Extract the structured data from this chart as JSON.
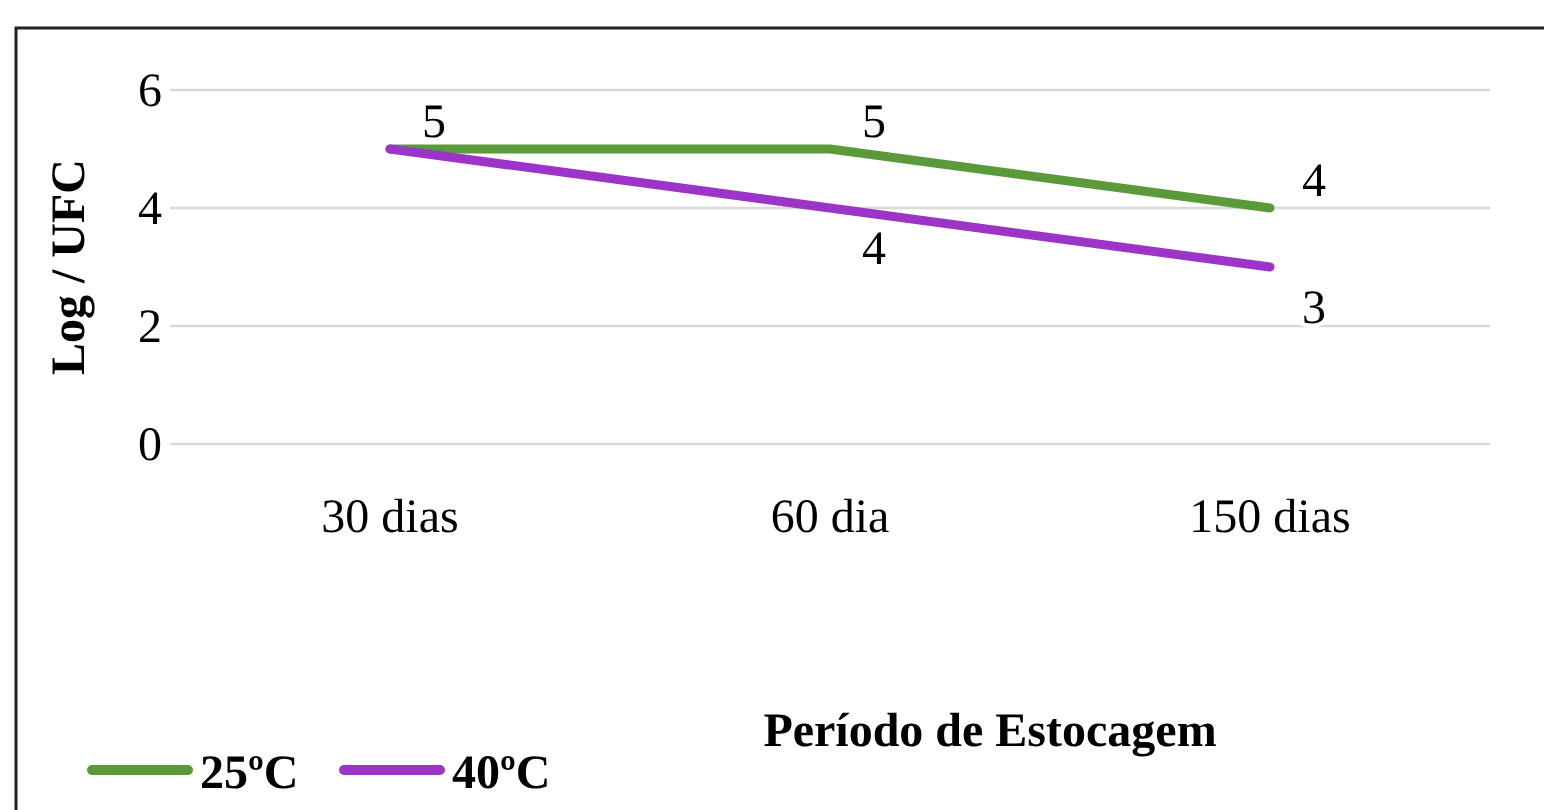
{
  "chart_data": {
    "type": "line",
    "xlabel": "Período de Estocagem",
    "ylabel": "Log / UFC",
    "categories": [
      "30 dias",
      "60 dia",
      "150 dias"
    ],
    "series": [
      {
        "name": "25ºC",
        "color": "#5a9a3a",
        "values": [
          5,
          5,
          4
        ],
        "value_labels": [
          "5",
          "5",
          "4"
        ]
      },
      {
        "name": "40ºC",
        "color": "#9a35c8",
        "values": [
          5,
          4,
          3
        ],
        "value_labels": [
          null,
          "4",
          "3"
        ]
      }
    ],
    "ylim": [
      0,
      6
    ],
    "yticks": [
      0,
      2,
      4,
      6
    ],
    "grid": "y",
    "legend": "bottom left",
    "marker": "none",
    "line_style": "solid"
  }
}
